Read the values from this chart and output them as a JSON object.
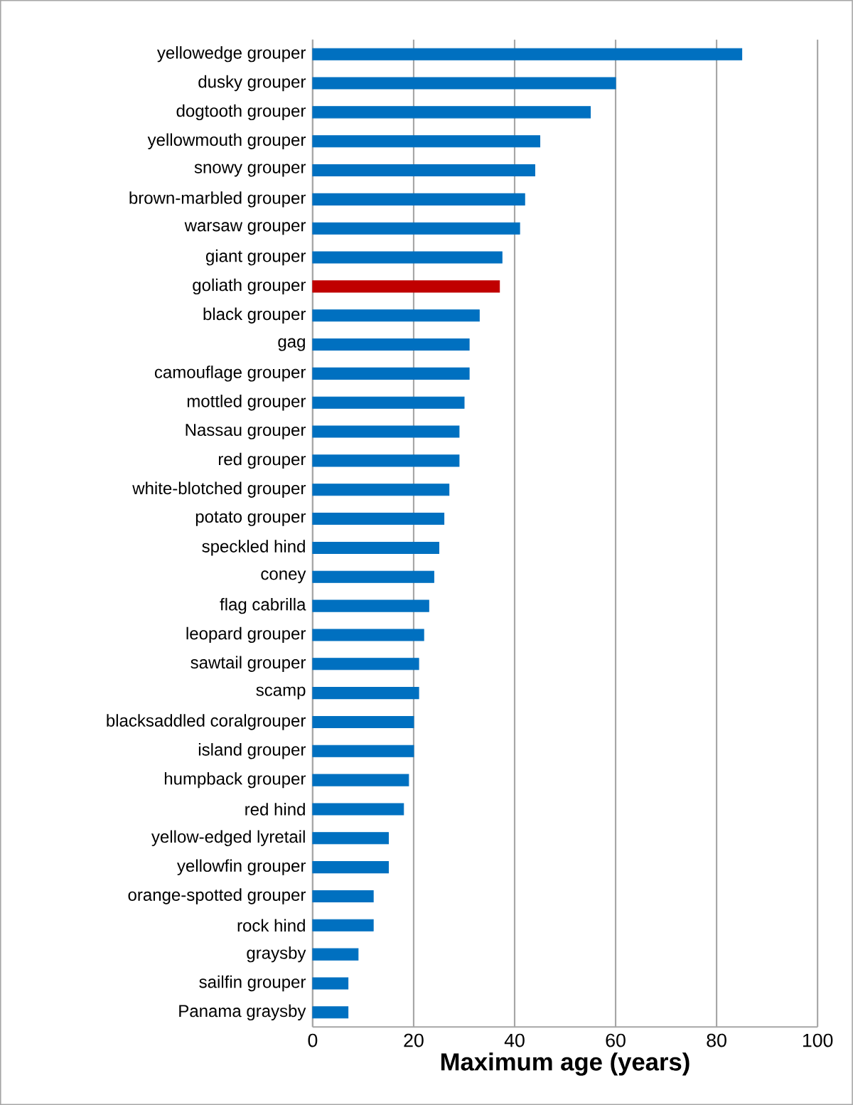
{
  "chart_data": {
    "type": "bar",
    "orientation": "horizontal",
    "xlabel": "Maximum age (years)",
    "categories": [
      "yellowedge grouper",
      "dusky grouper",
      "dogtooth grouper",
      "yellowmouth grouper",
      "snowy grouper",
      "brown-marbled grouper",
      "warsaw grouper",
      "giant grouper",
      "goliath grouper",
      "black grouper",
      "gag",
      "camouflage grouper",
      "mottled grouper",
      "Nassau grouper",
      "red grouper",
      "white-blotched grouper",
      "potato grouper",
      "speckled hind",
      "coney",
      "flag cabrilla",
      "leopard grouper",
      "sawtail grouper",
      "scamp",
      "blacksaddled coralgrouper",
      "island grouper",
      "humpback grouper",
      "red hind",
      "yellow-edged lyretail",
      "yellowfin grouper",
      "orange-spotted grouper",
      "rock hind",
      "graysby",
      "sailfin grouper",
      "Panama graysby"
    ],
    "values": [
      85,
      60,
      55,
      45,
      44,
      42,
      41,
      37.5,
      37,
      33,
      31,
      31,
      30,
      29,
      29,
      27,
      26,
      25,
      24,
      23,
      22,
      21,
      21,
      20,
      20,
      19,
      18,
      15,
      15,
      12,
      12,
      9,
      7,
      7
    ],
    "colors": [
      "#0070c0",
      "#0070c0",
      "#0070c0",
      "#0070c0",
      "#0070c0",
      "#0070c0",
      "#0070c0",
      "#0070c0",
      "#c00000",
      "#0070c0",
      "#0070c0",
      "#0070c0",
      "#0070c0",
      "#0070c0",
      "#0070c0",
      "#0070c0",
      "#0070c0",
      "#0070c0",
      "#0070c0",
      "#0070c0",
      "#0070c0",
      "#0070c0",
      "#0070c0",
      "#0070c0",
      "#0070c0",
      "#0070c0",
      "#0070c0",
      "#0070c0",
      "#0070c0",
      "#0070c0",
      "#0070c0",
      "#0070c0",
      "#0070c0",
      "#0070c0"
    ],
    "xlim": [
      0,
      100
    ],
    "xticks": [
      0,
      20,
      40,
      60,
      80,
      100
    ],
    "grid": "x"
  }
}
